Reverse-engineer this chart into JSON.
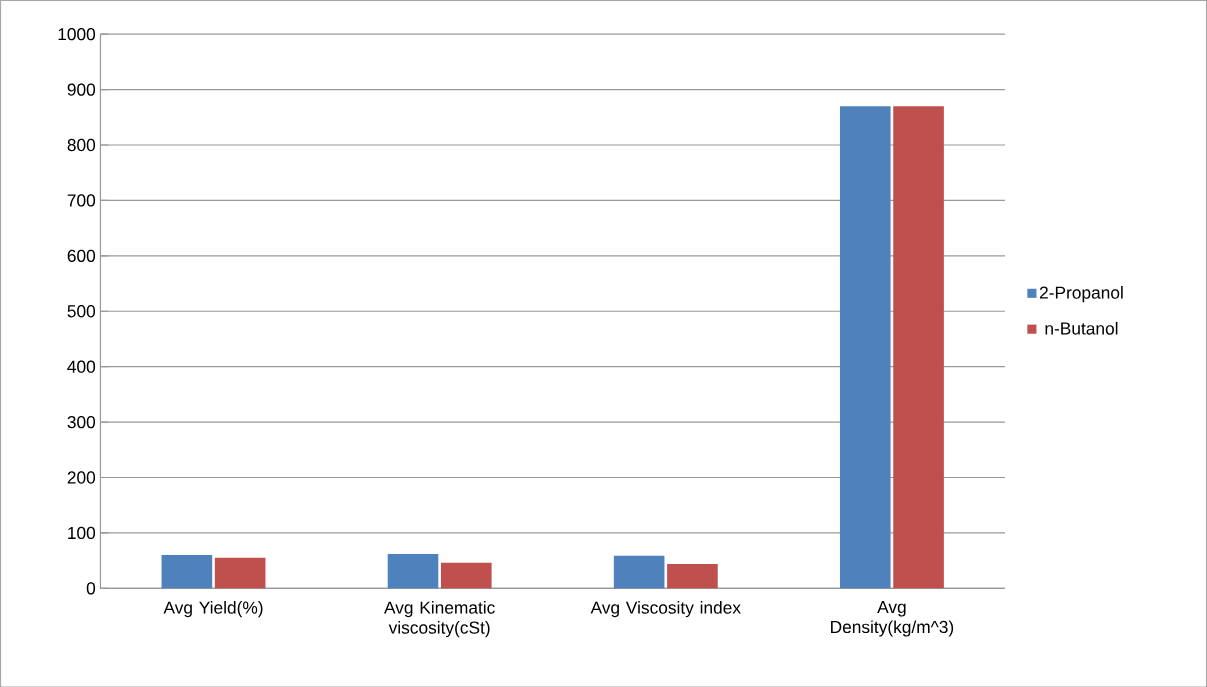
{
  "chart_data": {
    "type": "bar",
    "categories": [
      "Avg Yield(%)",
      "Avg Kinematic viscosity(cSt)",
      "Avg Viscosity index",
      "Avg Density(kg/m^3)"
    ],
    "series": [
      {
        "name": "2-Propanol",
        "color": "#4f81bd",
        "values": [
          60,
          62,
          59,
          870
        ]
      },
      {
        "name": "n-Butanol",
        "color": "#c0504d",
        "values": [
          55,
          46,
          44,
          870
        ]
      }
    ],
    "ylim": [
      0,
      1000
    ],
    "yticks": [
      0,
      100,
      200,
      300,
      400,
      500,
      600,
      700,
      800,
      900,
      1000
    ],
    "grid": "y",
    "legend": "right"
  }
}
